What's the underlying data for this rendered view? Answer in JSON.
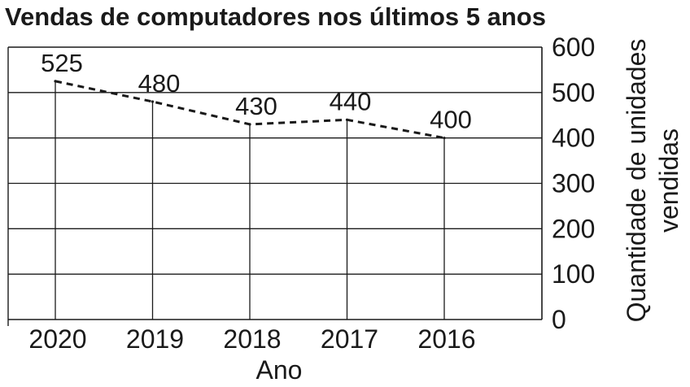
{
  "chart_data": {
    "type": "line",
    "title": "Vendas de computadores nos últimos 5 anos",
    "xlabel": "Ano",
    "ylabel_lines": [
      "Quantidade de unidades",
      "vendidas"
    ],
    "categories": [
      "2020",
      "2019",
      "2018",
      "2017",
      "2016"
    ],
    "values": [
      525,
      480,
      430,
      440,
      400
    ],
    "data_labels": [
      "525",
      "480",
      "430",
      "440",
      "400"
    ],
    "ylim": [
      0,
      600
    ],
    "yticks": [
      0,
      100,
      200,
      300,
      400,
      500,
      600
    ],
    "ytick_labels": [
      "0",
      "100",
      "200",
      "300",
      "400",
      "500",
      "600"
    ],
    "y_axis_side": "right",
    "line_style": "dashed",
    "grid": true,
    "line_color": "#1a1a1a",
    "grid_color": "#1a1a1a"
  }
}
